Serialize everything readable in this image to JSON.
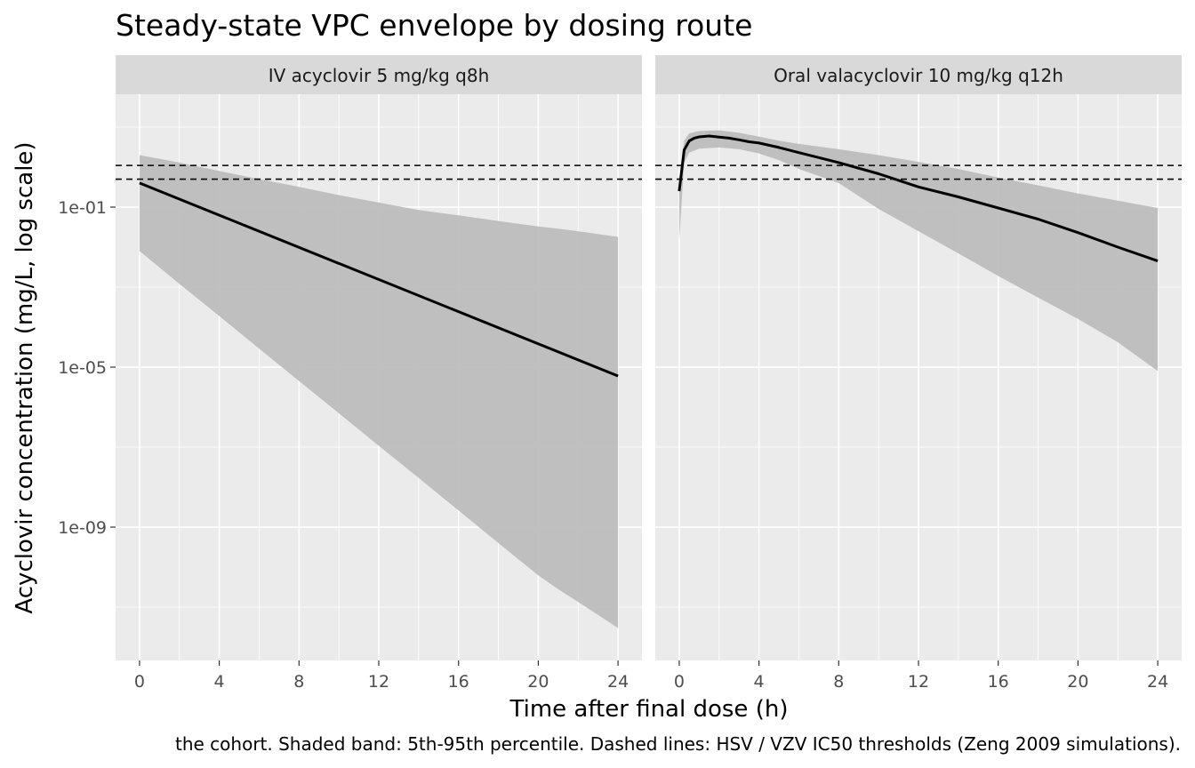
{
  "chart_data": {
    "type": "line",
    "title": "Steady-state VPC envelope by dosing route",
    "xlabel": "Time after final dose (h)",
    "ylabel": "Acyclovir concentration (mg/L, log scale)",
    "caption": "the cohort. Shaded band: 5th-95th percentile. Dashed lines: HSV / VZV IC50 thresholds (Zeng 2009 simulations).",
    "y_scale": "log10",
    "ylim": [
      1e-12,
      100.0
    ],
    "y_ticks": [
      {
        "value": 0.1,
        "label": "1e-01"
      },
      {
        "value": 1e-05,
        "label": "1e-05"
      },
      {
        "value": 1e-09,
        "label": "1e-09"
      }
    ],
    "xlim": [
      -1.2,
      25.2
    ],
    "x_ticks": [
      0,
      4,
      8,
      12,
      16,
      20,
      24
    ],
    "x_tick_labels": [
      "0",
      "4",
      "8",
      "12",
      "16",
      "20",
      "24"
    ],
    "grid": true,
    "reference_lines": [
      {
        "y": 1.1,
        "style": "dashed"
      },
      {
        "y": 0.5,
        "style": "dashed"
      }
    ],
    "band_color": "#bdbdbd",
    "line_color": "#000000",
    "panels": [
      {
        "strip": "IV acyclovir 5 mg/kg q8h",
        "median": {
          "x": [
            0,
            24
          ],
          "y": [
            0.4,
            6e-06
          ]
        },
        "band": {
          "x": [
            0,
            2,
            4,
            6,
            8,
            10,
            12,
            14,
            16,
            18,
            20,
            21,
            22,
            24
          ],
          "lower": [
            0.008,
            0.0012,
            0.00019,
            2.9e-05,
            4.5e-06,
            7e-07,
            1.08e-07,
            1.7e-08,
            2.6e-09,
            4e-10,
            6.2e-11,
            2.8e-11,
            1.35e-11,
            3e-12
          ],
          "upper": [
            2.0,
            1.3,
            0.8,
            0.5,
            0.32,
            0.2,
            0.13,
            0.085,
            0.062,
            0.045,
            0.033,
            0.029,
            0.025,
            0.018
          ]
        }
      },
      {
        "strip": "Oral valacyclovir 10 mg/kg q12h",
        "median": {
          "x": [
            0,
            0.25,
            0.5,
            0.75,
            1,
            1.5,
            2,
            2.5,
            3,
            3.5,
            4,
            5,
            6,
            8,
            10,
            12,
            14,
            16,
            18,
            20,
            22,
            24
          ],
          "y": [
            0.25,
            2.7,
            4.5,
            5.3,
            5.7,
            6.0,
            5.6,
            5.3,
            4.8,
            4.3,
            4.0,
            3.1,
            2.3,
            1.3,
            0.68,
            0.32,
            0.18,
            0.095,
            0.05,
            0.023,
            0.01,
            0.0045
          ]
        },
        "band": {
          "x": [
            0,
            0.25,
            0.5,
            1,
            2,
            3,
            4,
            5,
            6,
            8,
            10,
            12,
            14,
            16,
            18,
            20,
            22,
            24
          ],
          "lower": [
            0.015,
            1.3,
            2.3,
            2.9,
            3.1,
            2.8,
            2.2,
            1.5,
            0.9,
            0.4,
            0.09,
            0.025,
            0.007,
            0.0019,
            0.00055,
            0.00016,
            4.2e-05,
            8e-06
          ],
          "upper": [
            0.5,
            4.6,
            7.0,
            8.0,
            8.3,
            7.2,
            5.8,
            4.6,
            3.8,
            2.8,
            2.0,
            1.35,
            0.9,
            0.55,
            0.35,
            0.22,
            0.145,
            0.095
          ]
        }
      }
    ]
  }
}
